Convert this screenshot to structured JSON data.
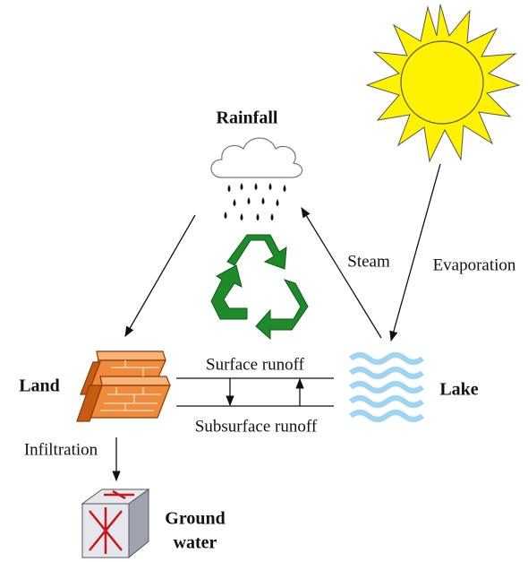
{
  "nodes": [
    {
      "label": "Rainfall"
    },
    {
      "label": "Land"
    },
    {
      "label": "Lake"
    },
    {
      "label_lines": [
        "Ground",
        "water"
      ]
    }
  ],
  "edges": [
    {
      "label": "Steam"
    },
    {
      "label": "Evaporation"
    },
    {
      "label": "Surface runoff"
    },
    {
      "label": "Subsurface runoff"
    },
    {
      "label": "Infiltration"
    }
  ]
}
